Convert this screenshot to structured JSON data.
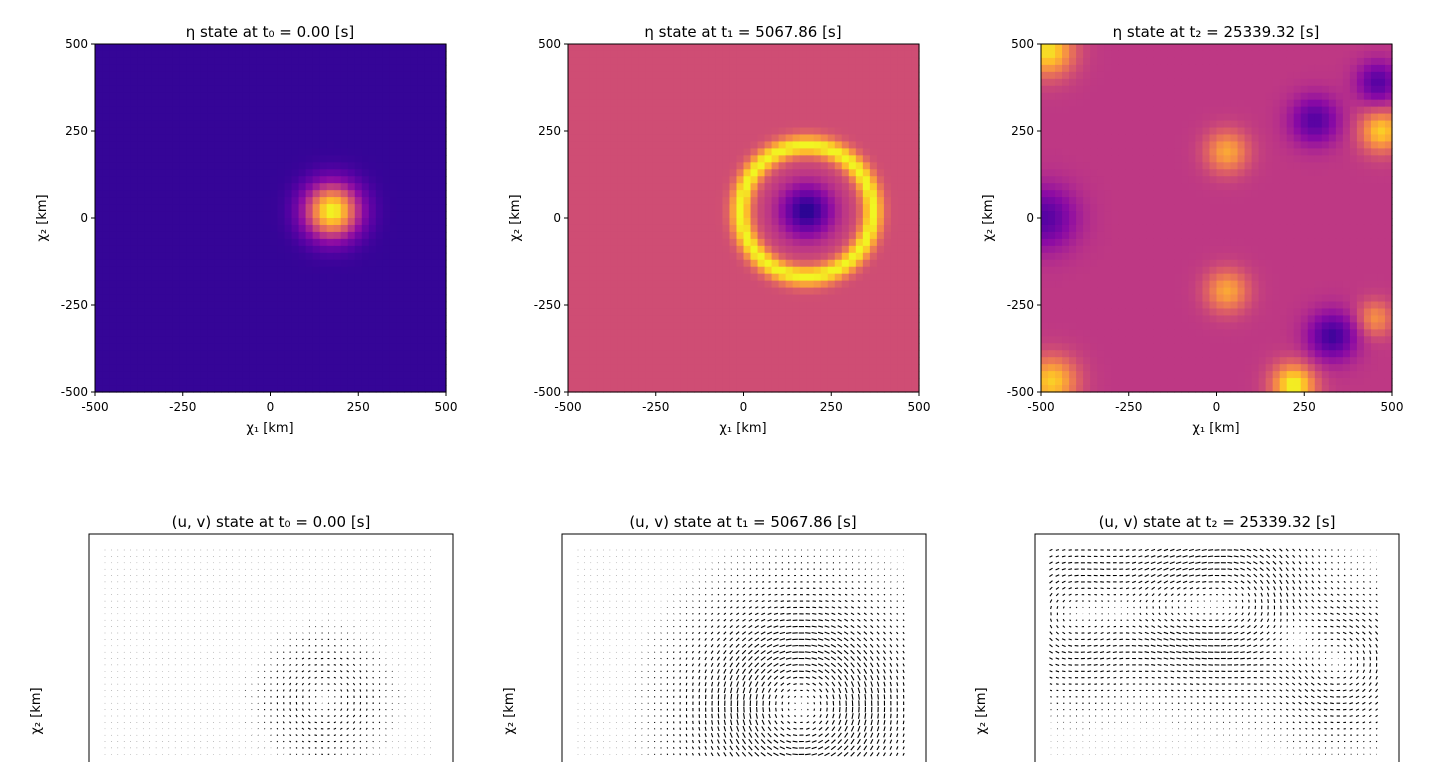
{
  "chart_data": [
    {
      "type": "heatmap",
      "title": "η state at t₀ = 0.00 [s]",
      "xlabel": "χ₁ [km]",
      "ylabel": "χ₂ [km]",
      "xlim": [
        -500,
        500
      ],
      "ylim": [
        -500,
        500
      ],
      "xticks": [
        "-500",
        "-250",
        "0",
        "250",
        "500"
      ],
      "yticks": [
        "500",
        "250",
        "0",
        "-250",
        "-500"
      ],
      "colormap": "plasma",
      "features": [
        {
          "kind": "blob",
          "x": 175,
          "y": 20,
          "radius": 75,
          "level": 1.0
        }
      ],
      "background_level": 0.08
    },
    {
      "type": "heatmap",
      "title": "η state at t₁ = 5067.86 [s]",
      "xlabel": "χ₁ [km]",
      "ylabel": "χ₂ [km]",
      "xlim": [
        -500,
        500
      ],
      "ylim": [
        -500,
        500
      ],
      "xticks": [
        "-500",
        "-250",
        "0",
        "250",
        "500"
      ],
      "yticks": [
        "500",
        "250",
        "0",
        "-250",
        "-500"
      ],
      "colormap": "plasma",
      "features": [
        {
          "kind": "ring",
          "x": 180,
          "y": 20,
          "inner_radius": 150,
          "outer_radius": 225,
          "level": 1.0
        },
        {
          "kind": "core",
          "x": 180,
          "y": 20,
          "radius": 120,
          "level": 0.05
        }
      ],
      "background_level": 0.52
    },
    {
      "type": "heatmap",
      "title": "η state at t₂ = 25339.32 [s]",
      "xlabel": "χ₁ [km]",
      "ylabel": "χ₂ [km]",
      "xlim": [
        -500,
        500
      ],
      "ylim": [
        -500,
        500
      ],
      "xticks": [
        "-500",
        "-250",
        "0",
        "250",
        "500"
      ],
      "yticks": [
        "500",
        "250",
        "0",
        "-250",
        "-500"
      ],
      "colormap": "plasma",
      "features": [
        {
          "kind": "hotspot",
          "x": -480,
          "y": 480,
          "radius": 70,
          "level": 0.95
        },
        {
          "kind": "hotspot",
          "x": -470,
          "y": -470,
          "radius": 70,
          "level": 0.9
        },
        {
          "kind": "hotspot",
          "x": 220,
          "y": -480,
          "radius": 60,
          "level": 1.0
        },
        {
          "kind": "hotspot",
          "x": 470,
          "y": 250,
          "radius": 60,
          "level": 0.9
        },
        {
          "kind": "hotspot",
          "x": 30,
          "y": 190,
          "radius": 60,
          "level": 0.8
        },
        {
          "kind": "hotspot",
          "x": 30,
          "y": -210,
          "radius": 60,
          "level": 0.8
        },
        {
          "kind": "hotspot",
          "x": 450,
          "y": -290,
          "radius": 50,
          "level": 0.75
        },
        {
          "kind": "trough",
          "x": -490,
          "y": 0,
          "radius": 90,
          "level": 0.15
        },
        {
          "kind": "trough",
          "x": 330,
          "y": -340,
          "radius": 70,
          "level": 0.1
        },
        {
          "kind": "trough",
          "x": 280,
          "y": 280,
          "radius": 70,
          "level": 0.15
        },
        {
          "kind": "trough",
          "x": 460,
          "y": 390,
          "radius": 60,
          "level": 0.15
        }
      ],
      "background_level": 0.45
    },
    {
      "type": "quiver",
      "title": "(u, v) state at t₀ = 0.00 [s]",
      "ylabel": "χ₂ [km]",
      "xlim": [
        -500,
        500
      ],
      "ylim": [
        -500,
        500
      ],
      "vortices": [
        {
          "x": 170,
          "y": 40,
          "radius": 130,
          "strength": 1.0
        }
      ],
      "noise": 0.08
    },
    {
      "type": "quiver",
      "title": "(u, v) state at t₁ = 5067.86 [s]",
      "ylabel": "χ₂ [km]",
      "xlim": [
        -500,
        500
      ],
      "ylim": [
        -500,
        500
      ],
      "vortices": [
        {
          "x": 180,
          "y": 20,
          "radius": 250,
          "strength": 2.4
        }
      ],
      "noise": 0.0
    },
    {
      "type": "quiver",
      "title": "(u, v) state at t₂ = 25339.32 [s]",
      "ylabel": "χ₂ [km]",
      "xlim": [
        -500,
        500
      ],
      "ylim": [
        -500,
        500
      ],
      "vortices": [
        {
          "x": -420,
          "y": 300,
          "radius": 180,
          "strength": 1.6
        },
        {
          "x": 60,
          "y": 330,
          "radius": 200,
          "strength": 1.8
        },
        {
          "x": 380,
          "y": 150,
          "radius": 160,
          "strength": 1.5
        },
        {
          "x": -150,
          "y": 320,
          "radius": 160,
          "strength": 1.3
        }
      ],
      "noise": 0.05
    }
  ]
}
